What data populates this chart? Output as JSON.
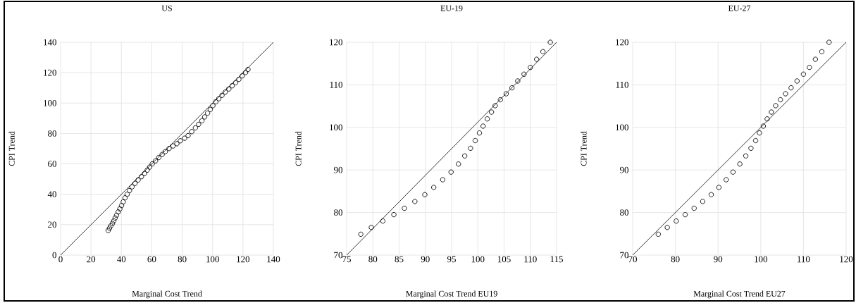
{
  "chart_data": [
    {
      "type": "scatter",
      "title": "US",
      "xlabel": "Marginal Cost Trend",
      "ylabel": "CPI Trend",
      "xlim": [
        0,
        140
      ],
      "ylim": [
        0,
        140
      ],
      "xticks": [
        0,
        20,
        40,
        60,
        80,
        100,
        120,
        140
      ],
      "yticks": [
        0,
        20,
        40,
        60,
        80,
        100,
        120,
        140
      ],
      "grid": true,
      "series": [
        {
          "marker": "circle",
          "color": "#000000",
          "x": [
            31.3,
            32.2,
            33.1,
            34.1,
            35.0,
            35.9,
            36.8,
            37.9,
            39.0,
            40.1,
            41.2,
            42.4,
            43.8,
            45.3,
            47.0,
            49.0,
            51.0,
            53.2,
            55.2,
            57.0,
            58.6,
            60.3,
            62.5,
            64.6,
            66.8,
            68.9,
            71.4,
            74.0,
            76.5,
            78.8,
            81.6,
            83.9,
            86.3,
            88.7,
            90.8,
            93.0,
            94.8,
            96.7,
            98.5,
            100.2,
            102.1,
            104.1,
            106.2,
            108.4,
            110.7,
            112.9,
            115.2,
            117.3,
            119.5,
            121.7,
            123.3
          ],
          "values": [
            16.2,
            17.7,
            19.3,
            20.8,
            22.5,
            24.4,
            26.2,
            28.4,
            30.4,
            32.6,
            35.0,
            37.7,
            40.0,
            42.4,
            44.9,
            47.2,
            49.4,
            51.6,
            53.7,
            55.9,
            57.9,
            60.0,
            62.0,
            64.2,
            66.2,
            68.1,
            70.1,
            71.8,
            73.3,
            75.2,
            76.9,
            78.6,
            81.2,
            83.7,
            86.0,
            88.4,
            90.9,
            93.4,
            95.8,
            98.3,
            100.8,
            102.9,
            105.1,
            107.3,
            109.3,
            111.4,
            113.4,
            115.6,
            117.9,
            120.1,
            122.1
          ]
        },
        {
          "type": "line",
          "color": "#000000",
          "x": [
            0,
            140
          ],
          "values": [
            0,
            140
          ]
        }
      ]
    },
    {
      "type": "scatter",
      "title": "EU-19",
      "xlabel": "Marginal Cost Trend EU19",
      "ylabel": "CPI Trend",
      "xlim": [
        75,
        115
      ],
      "ylim": [
        70,
        120
      ],
      "xticks": [
        75,
        80,
        85,
        90,
        95,
        100,
        105,
        110,
        115
      ],
      "yticks": [
        70,
        80,
        90,
        100,
        110,
        120
      ],
      "grid": true,
      "series": [
        {
          "marker": "circle",
          "color": "#000000",
          "x": [
            77.7,
            79.7,
            81.9,
            84.0,
            86.0,
            88.0,
            89.9,
            91.6,
            93.3,
            94.9,
            96.3,
            97.5,
            98.6,
            99.5,
            100.3,
            101.0,
            101.8,
            102.6,
            103.3,
            104.3,
            105.4,
            106.5,
            107.6,
            108.8,
            110.0,
            111.2,
            112.4,
            113.8
          ],
          "values": [
            74.9,
            76.5,
            78.0,
            79.5,
            81.0,
            82.6,
            84.2,
            85.9,
            87.7,
            89.5,
            91.4,
            93.3,
            95.1,
            96.9,
            98.7,
            100.3,
            102.0,
            103.6,
            105.1,
            106.5,
            107.9,
            109.3,
            110.9,
            112.5,
            114.1,
            116.0,
            117.8,
            120
          ]
        },
        {
          "type": "line",
          "color": "#000000",
          "x": [
            75,
            115
          ],
          "values": [
            70,
            120
          ]
        }
      ]
    },
    {
      "type": "scatter",
      "title": "EU-27",
      "xlabel": "Marginal Cost Trend EU27",
      "ylabel": "CPI Trend",
      "xlim": [
        70,
        120
      ],
      "ylim": [
        70,
        120
      ],
      "xticks": [
        70,
        80,
        90,
        100,
        110,
        120
      ],
      "yticks": [
        70,
        80,
        90,
        100,
        110,
        120
      ],
      "grid": true,
      "series": [
        {
          "marker": "circle",
          "color": "#000000",
          "x": [
            76.0,
            78.1,
            80.2,
            82.3,
            84.4,
            86.4,
            88.4,
            90.2,
            91.9,
            93.5,
            95.1,
            96.5,
            97.7,
            98.8,
            99.7,
            100.6,
            101.5,
            102.5,
            103.5,
            104.6,
            105.8,
            107.1,
            108.5,
            110.0,
            111.4,
            112.8,
            114.3,
            116.0
          ],
          "values": [
            74.9,
            76.5,
            78.0,
            79.5,
            81.0,
            82.6,
            84.2,
            85.9,
            87.7,
            89.5,
            91.4,
            93.3,
            95.1,
            96.9,
            98.7,
            100.3,
            102.0,
            103.6,
            105.1,
            106.5,
            107.9,
            109.3,
            110.9,
            112.5,
            114.1,
            116.0,
            117.8,
            120
          ]
        },
        {
          "type": "line",
          "color": "#000000",
          "x": [
            70,
            120
          ],
          "values": [
            70,
            120
          ]
        }
      ]
    }
  ]
}
